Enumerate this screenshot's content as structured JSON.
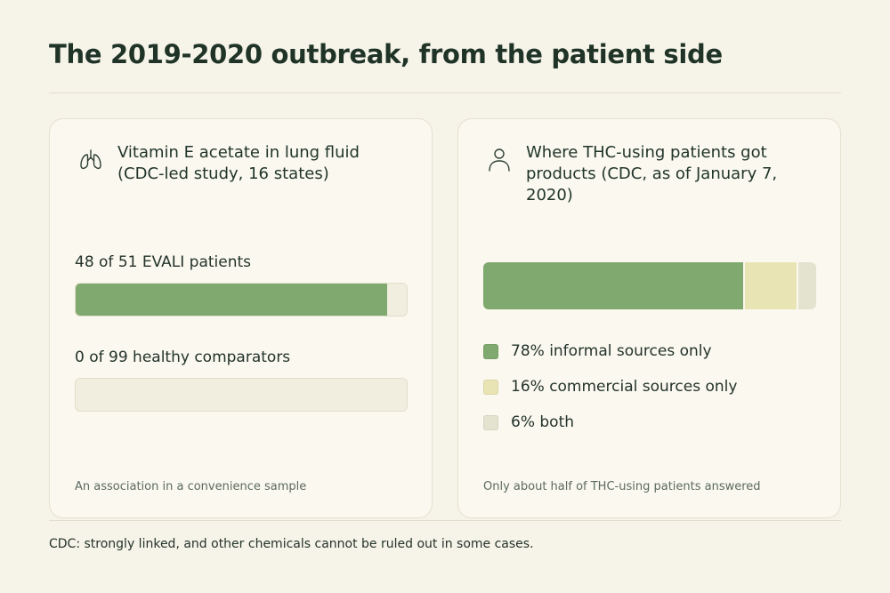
{
  "page": {
    "title": "The 2019-2020 outbreak, from the patient side",
    "bottom_note": "CDC: strongly linked, and other chemicals cannot be ruled out in some cases."
  },
  "colors": {
    "informal": "#7fa96e",
    "commercial": "#e9e4b3",
    "both": "#e4e3d0",
    "track": "#f1eedf"
  },
  "left_card": {
    "icon": "lungs-icon",
    "title": "Vitamin E acetate in lung fluid (CDC-led study, 16 states)",
    "bars": [
      {
        "label": "48 of 51 EVALI patients",
        "numerator": 48,
        "denominator": 51
      },
      {
        "label": "0 of 99 healthy comparators",
        "numerator": 0,
        "denominator": 99
      }
    ],
    "footnote": "An association in a convenience sample"
  },
  "right_card": {
    "icon": "person-icon",
    "title": "Where THC-using patients got products (CDC, as of January 7, 2020)",
    "legend": [
      {
        "label": "78% informal sources only",
        "value": 78,
        "color_key": "informal"
      },
      {
        "label": "16% commercial sources only",
        "value": 16,
        "color_key": "commercial"
      },
      {
        "label": "6% both",
        "value": 6,
        "color_key": "both"
      }
    ],
    "footnote": "Only about half of THC-using patients answered"
  },
  "chart_data": [
    {
      "type": "bar",
      "orientation": "horizontal",
      "categories": [
        "48 of 51 EVALI patients",
        "0 of 99 healthy comparators"
      ],
      "values": [
        48,
        0
      ],
      "totals": [
        51,
        99
      ],
      "title": "Vitamin E acetate in lung fluid (CDC-led study, 16 states)",
      "xlabel": "",
      "ylabel": ""
    },
    {
      "type": "bar",
      "stacked": true,
      "orientation": "horizontal",
      "title": "Where THC-using patients got products (CDC, as of January 7, 2020)",
      "series": [
        {
          "name": "78% informal sources only",
          "values": [
            78
          ]
        },
        {
          "name": "16% commercial sources only",
          "values": [
            16
          ]
        },
        {
          "name": "6% both",
          "values": [
            6
          ]
        }
      ],
      "units": "%",
      "legend": "below"
    }
  ]
}
